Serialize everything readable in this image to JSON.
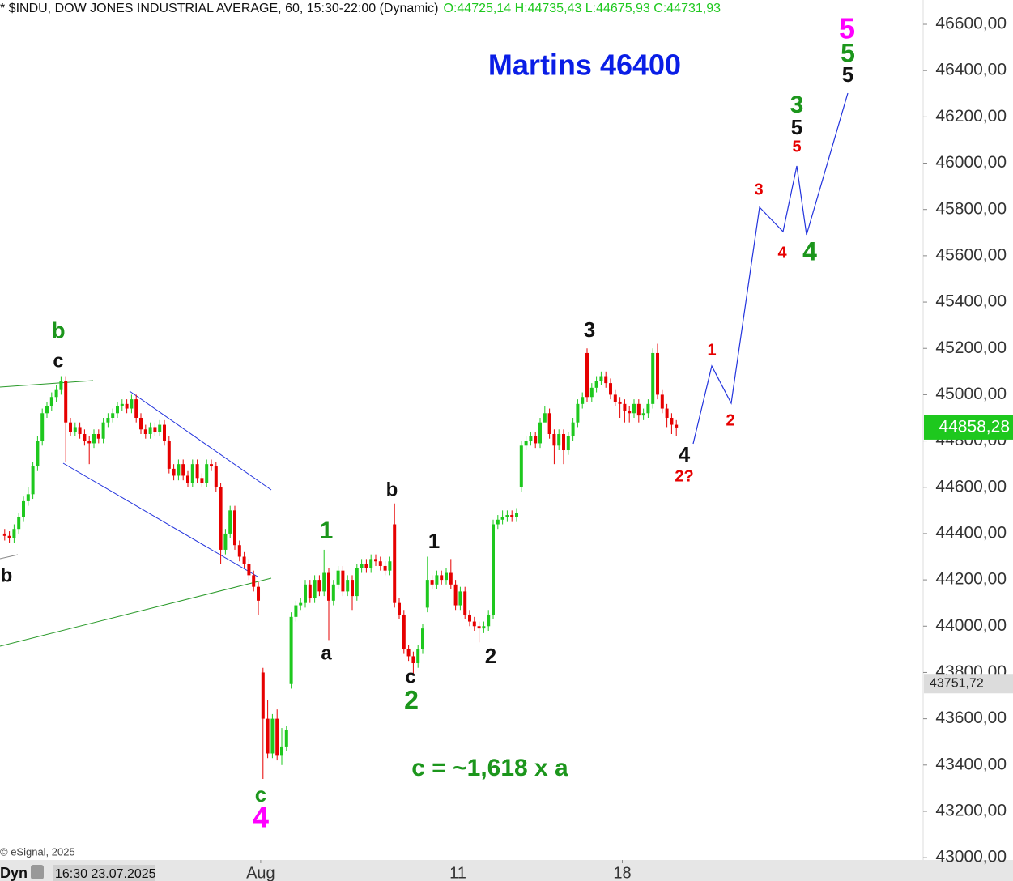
{
  "chart_data": {
    "type": "candlestick",
    "title": "* $INDU, DOW JONES INDUSTRIAL AVERAGE, 60, 15:30-22:00 (Dynamic)",
    "subtitle": "O:44725,14 H:44735,43 L:44675,93 C:44731,93",
    "x": [
      1,
      2,
      3,
      4,
      5,
      6,
      7,
      8,
      9,
      10,
      11,
      12,
      13,
      14,
      15,
      16,
      17,
      18,
      19,
      20,
      21,
      22,
      23,
      24,
      25,
      26,
      27,
      28,
      29,
      30,
      31,
      32,
      33,
      34,
      35,
      36,
      37,
      38,
      39,
      40,
      41,
      42,
      43,
      44,
      45,
      46,
      47,
      48,
      49,
      50,
      51,
      52,
      53,
      54,
      55,
      56,
      57,
      58,
      59,
      60,
      61,
      62,
      63,
      64,
      65,
      66,
      67,
      68,
      69,
      70,
      71,
      72,
      73,
      74,
      75,
      76,
      77,
      78,
      79,
      80,
      81,
      82,
      83,
      84,
      85,
      86,
      87,
      88,
      89,
      90,
      91,
      92,
      93,
      94,
      95,
      96,
      97,
      98,
      99,
      100,
      101,
      102,
      103,
      104,
      105,
      106,
      107,
      108,
      109,
      110,
      111,
      112,
      113,
      114,
      115,
      116,
      117,
      118,
      119,
      120,
      121,
      122,
      123,
      124,
      125,
      126,
      127,
      128,
      129,
      130,
      131,
      132,
      133,
      134,
      135,
      136,
      137,
      138,
      139,
      140,
      141,
      142,
      143,
      144
    ],
    "open": [
      44400,
      44390,
      44380,
      44420,
      44470,
      44540,
      44570,
      44690,
      44800,
      44920,
      44950,
      44990,
      45020,
      45060,
      44880,
      44840,
      44860,
      44830,
      44800,
      44790,
      44830,
      44810,
      44880,
      44900,
      44920,
      44950,
      44960,
      44940,
      44980,
      44900,
      44850,
      44830,
      44860,
      44840,
      44870,
      44800,
      44680,
      44650,
      44700,
      44650,
      44620,
      44700,
      44640,
      44620,
      44700,
      44690,
      44600,
      44330,
      44400,
      44500,
      44350,
      44300,
      44270,
      44220,
      44170,
      43800,
      43600,
      43450,
      43600,
      43440,
      43480,
      43750,
      44040,
      44090,
      44100,
      44180,
      44120,
      44200,
      44150,
      44230,
      44110,
      44180,
      44240,
      44150,
      44200,
      44130,
      44250,
      44270,
      44250,
      44290,
      44280,
      44260,
      44240,
      44440,
      44100,
      44050,
      43900,
      43870,
      43840,
      43900,
      44080,
      44200,
      44180,
      44220,
      44200,
      44230,
      44180,
      44090,
      44150,
      44050,
      44020,
      44000,
      43990,
      44000,
      44050,
      44440,
      44460,
      44470,
      44480,
      44470,
      44600,
      44780,
      44800,
      44820,
      44790,
      44880,
      44920,
      44830,
      44780,
      44830,
      44760,
      44820,
      44880,
      44960,
      45180,
      44990,
      45030,
      45060,
      45080,
      45050,
      45000,
      44970,
      44960,
      44930,
      44920,
      44960,
      44910,
      44920,
      44960,
      45180,
      45000,
      44940,
      44900,
      44870
    ],
    "high": [
      44420,
      44410,
      44440,
      44490,
      44560,
      44600,
      44710,
      44820,
      44940,
      44970,
      45010,
      45040,
      45080,
      45080,
      44900,
      44880,
      44880,
      44850,
      44820,
      44850,
      44850,
      44900,
      44920,
      44940,
      44970,
      44980,
      44980,
      45000,
      45000,
      44920,
      44870,
      44880,
      44880,
      44890,
      44890,
      44820,
      44700,
      44720,
      44720,
      44670,
      44720,
      44720,
      44660,
      44720,
      44720,
      44710,
      44620,
      44420,
      44520,
      44520,
      44370,
      44320,
      44290,
      44240,
      44190,
      43820,
      43680,
      43620,
      43640,
      43560,
      43570,
      44060,
      44110,
      44120,
      44200,
      44200,
      44220,
      44220,
      44330,
      44250,
      44200,
      44260,
      44260,
      44220,
      44220,
      44270,
      44290,
      44290,
      44310,
      44310,
      44300,
      44280,
      44300,
      44530,
      44120,
      44070,
      43920,
      43890,
      43920,
      44010,
      44300,
      44220,
      44240,
      44240,
      44250,
      44290,
      44200,
      44170,
      44170,
      44070,
      44040,
      44020,
      44020,
      44070,
      44460,
      44480,
      44500,
      44500,
      44500,
      44510,
      44800,
      44820,
      44840,
      44840,
      44900,
      44950,
      44940,
      44850,
      44850,
      44850,
      44840,
      44900,
      44980,
      45010,
      45200,
      45050,
      45080,
      45100,
      45100,
      45070,
      45020,
      44990,
      44980,
      44950,
      44980,
      44980,
      44940,
      44980,
      45200,
      45220,
      45020,
      44960,
      44920,
      44890
    ],
    "low": [
      44370,
      44360,
      44360,
      44400,
      44450,
      44520,
      44550,
      44670,
      44780,
      44900,
      44930,
      44970,
      45000,
      44710,
      44820,
      44820,
      44810,
      44780,
      44700,
      44770,
      44790,
      44790,
      44860,
      44880,
      44900,
      44930,
      44920,
      44920,
      44880,
      44830,
      44810,
      44810,
      44820,
      44820,
      44780,
      44660,
      44630,
      44630,
      44630,
      44600,
      44600,
      44620,
      44600,
      44600,
      44670,
      44580,
      44270,
      44310,
      44380,
      44330,
      44280,
      44250,
      44200,
      44150,
      44050,
      43340,
      43430,
      43430,
      43420,
      43400,
      43460,
      43730,
      44020,
      44070,
      44080,
      44100,
      44100,
      44130,
      44130,
      43940,
      44090,
      44160,
      44130,
      44130,
      44070,
      44110,
      44230,
      44230,
      44230,
      44260,
      44240,
      44220,
      44220,
      44080,
      44030,
      43880,
      43850,
      43790,
      43820,
      43880,
      44060,
      44160,
      44160,
      44180,
      44180,
      44160,
      44070,
      44070,
      44030,
      44000,
      43980,
      43930,
      43970,
      43980,
      44030,
      44420,
      44440,
      44450,
      44450,
      44450,
      44580,
      44760,
      44780,
      44770,
      44770,
      44900,
      44810,
      44700,
      44760,
      44700,
      44740,
      44800,
      44860,
      44940,
      44970,
      44970,
      45010,
      45040,
      45030,
      44980,
      44950,
      44900,
      44880,
      44880,
      44900,
      44880,
      44890,
      44900,
      44940,
      44980,
      44920,
      44860,
      44830,
      44820
    ],
    "close": [
      44390,
      44380,
      44420,
      44470,
      44540,
      44570,
      44690,
      44800,
      44920,
      44950,
      44990,
      45020,
      45060,
      44880,
      44840,
      44860,
      44830,
      44800,
      44790,
      44830,
      44810,
      44880,
      44900,
      44920,
      44950,
      44960,
      44940,
      44980,
      44900,
      44850,
      44830,
      44860,
      44840,
      44870,
      44800,
      44680,
      44650,
      44700,
      44650,
      44620,
      44700,
      44640,
      44620,
      44700,
      44690,
      44600,
      44330,
      44400,
      44500,
      44350,
      44300,
      44270,
      44220,
      44170,
      44110,
      43600,
      43450,
      43600,
      43440,
      43480,
      43550,
      44040,
      44090,
      44100,
      44180,
      44120,
      44200,
      44150,
      44230,
      44110,
      44180,
      44240,
      44150,
      44200,
      44130,
      44250,
      44270,
      44250,
      44290,
      44280,
      44260,
      44240,
      44280,
      44100,
      44050,
      43900,
      43870,
      43840,
      43900,
      43990,
      44200,
      44180,
      44220,
      44200,
      44230,
      44180,
      44090,
      44150,
      44050,
      44020,
      44000,
      43990,
      44000,
      44050,
      44440,
      44460,
      44470,
      44480,
      44470,
      44490,
      44780,
      44800,
      44820,
      44790,
      44880,
      44920,
      44830,
      44780,
      44830,
      44760,
      44820,
      44880,
      44960,
      44990,
      44990,
      45030,
      45060,
      45080,
      45050,
      45000,
      44970,
      44960,
      44930,
      44920,
      44960,
      44910,
      44920,
      44960,
      45180,
      45000,
      44940,
      44900,
      44870,
      44858.28
    ],
    "up_color": "#1ec81e",
    "down_color": "#e60000",
    "xlim": [
      0,
      196.55
    ],
    "xticks": [
      {
        "value": 55.5,
        "label": "Aug"
      },
      {
        "value": 97.5,
        "label": "11"
      },
      {
        "value": 132.5,
        "label": "18"
      }
    ],
    "ylim": [
      42990,
      46705
    ],
    "yticks": [
      {
        "value": 43000,
        "label": "43000,00"
      },
      {
        "value": 43200,
        "label": "43200,00"
      },
      {
        "value": 43400,
        "label": "43400,00"
      },
      {
        "value": 43600,
        "label": "43600,00"
      },
      {
        "value": 43800,
        "label": "43800,00"
      },
      {
        "value": 44000,
        "label": "44000,00"
      },
      {
        "value": 44200,
        "label": "44200,00"
      },
      {
        "value": 44400,
        "label": "44400,00"
      },
      {
        "value": 44600,
        "label": "44600,00"
      },
      {
        "value": 44800,
        "label": "44800,00"
      },
      {
        "value": 45000,
        "label": "45000,00"
      },
      {
        "value": 45200,
        "label": "45200,00"
      },
      {
        "value": 45400,
        "label": "45400,00"
      },
      {
        "value": 45600,
        "label": "45600,00"
      },
      {
        "value": 45800,
        "label": "45800,00"
      },
      {
        "value": 46000,
        "label": "46000,00"
      },
      {
        "value": 46200,
        "label": "46200,00"
      },
      {
        "value": 46400,
        "label": "46400,00"
      },
      {
        "value": 46600,
        "label": "46600,00"
      }
    ],
    "grid": false,
    "last_price": {
      "value": 44858.28,
      "label": "44858,28"
    },
    "crosshair": {
      "value": 43751.72,
      "label": "43751,72",
      "date": "16:30 23.07.2025"
    },
    "annotations": [
      "Martins 46400",
      "c = ~1,618 x a",
      "b",
      "c",
      "b",
      "c",
      "4",
      "1",
      "a",
      "b",
      "c",
      "2",
      "1",
      "2",
      "3",
      "4",
      "2?",
      "1",
      "2",
      "3",
      "4",
      "5",
      "4",
      "3",
      "5",
      "5",
      "5",
      "5"
    ]
  },
  "footer": {
    "copyright": "© eSignal, 2025",
    "mode": "Dyn"
  }
}
